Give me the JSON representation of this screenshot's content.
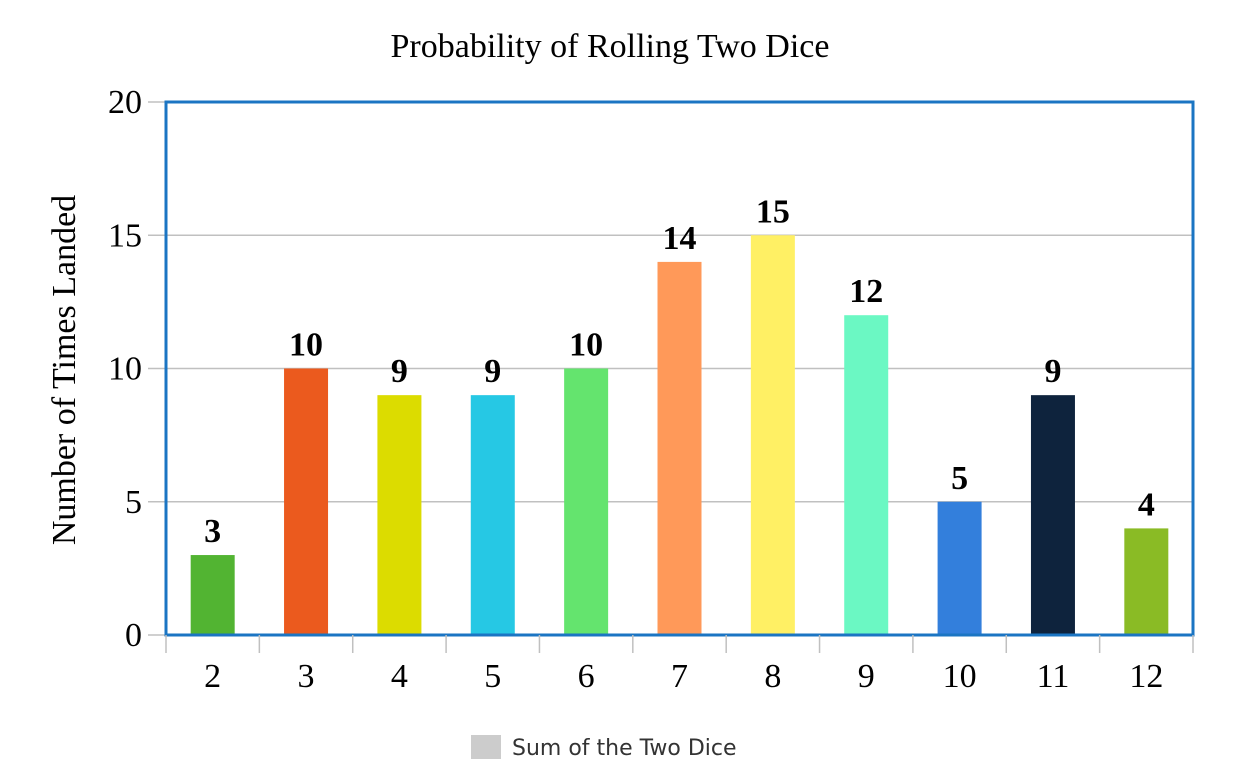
{
  "chart_data": {
    "type": "bar",
    "title": "Probability of Rolling Two Dice",
    "xlabel": "",
    "ylabel": "Number of Times Landed",
    "categories": [
      "2",
      "3",
      "4",
      "5",
      "6",
      "7",
      "8",
      "9",
      "10",
      "11",
      "12"
    ],
    "series": [
      {
        "name": "Sum of the Two Dice",
        "values": [
          3,
          10,
          9,
          9,
          10,
          14,
          15,
          12,
          5,
          9,
          4
        ]
      }
    ],
    "colors": [
      "#52b432",
      "#eb5a1e",
      "#dcdc00",
      "#26c8e4",
      "#64e46e",
      "#ff9959",
      "#fff064",
      "#6bf8c3",
      "#337fdc",
      "#0e233d",
      "#8abb25"
    ],
    "legend_color": "#cccccc",
    "ylim": [
      0,
      20
    ],
    "yticks": [
      0,
      5,
      10,
      15,
      20
    ],
    "grid": true,
    "plot_border_color": "#1b75c3",
    "legend_position": "bottom-center"
  }
}
